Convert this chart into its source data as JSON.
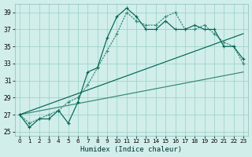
{
  "xlabel": "Humidex (Indice chaleur)",
  "background_color": "#d1eeea",
  "grid_color": "#a0d4cc",
  "line_color_dark": "#006655",
  "line_color_mid": "#338877",
  "xlim": [
    -0.5,
    23.5
  ],
  "ylim": [
    24.5,
    40.0
  ],
  "xticks": [
    0,
    1,
    2,
    3,
    4,
    5,
    6,
    7,
    8,
    9,
    10,
    11,
    12,
    13,
    14,
    15,
    16,
    17,
    18,
    19,
    20,
    21,
    22,
    23
  ],
  "yticks": [
    25,
    27,
    29,
    31,
    33,
    35,
    37,
    39
  ],
  "series1_y": [
    27,
    25.5,
    26.5,
    26.5,
    27.5,
    26.0,
    28.5,
    32.0,
    32.5,
    36.0,
    38.5,
    39.5,
    38.5,
    37.0,
    37.0,
    38.0,
    37.0,
    37.0,
    37.5,
    37.0,
    37.0,
    35.0,
    35.0,
    33.5
  ],
  "series2_y": [
    27,
    26.0,
    26.5,
    27.0,
    27.5,
    28.5,
    29.0,
    30.5,
    32.5,
    34.5,
    36.5,
    39.0,
    38.0,
    37.5,
    37.5,
    38.5,
    39.0,
    37.0,
    37.0,
    37.5,
    36.5,
    35.5,
    35.0,
    33.0
  ],
  "line1_y": [
    27,
    32.0
  ],
  "line2_y": [
    27,
    36.5
  ],
  "line1_x": [
    0,
    23
  ],
  "line2_x": [
    0,
    23
  ]
}
